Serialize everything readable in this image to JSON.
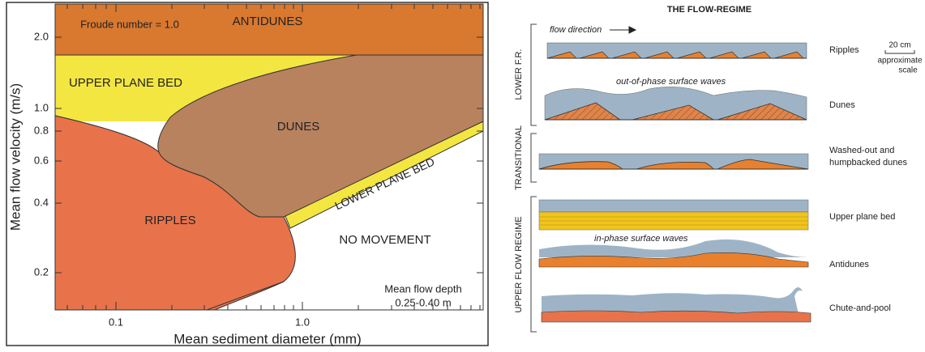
{
  "left_panel": {
    "y_axis_title": "Mean flow velocity (m/s)",
    "x_axis_title": "Mean sediment diameter (mm)",
    "y_tick_labels": [
      "2.0",
      "1.0",
      "0.8",
      "0.6",
      "0.4",
      "0.2"
    ],
    "x_tick_labels": [
      "0.1",
      "1.0"
    ],
    "froude_line": "Froude number = 1.0",
    "regions": [
      "ANTIDUNES",
      "UPPER PLANE BED",
      "DUNES",
      "RIPPLES",
      "LOWER PLANE BED",
      "NO MOVEMENT"
    ],
    "depth_note": [
      "Mean flow depth",
      "0.25-0.40 m"
    ]
  },
  "right_panel": {
    "title": "THE FLOW-REGIME",
    "flow_direction": "flow direction",
    "regimes": [
      "LOWER F.R.",
      "TRANSITIONAL",
      "UPPER FLOW REGIME"
    ],
    "bedforms": [
      "Ripples",
      "Dunes",
      "Washed-out and",
      "humpbacked dunes",
      "Upper plane bed",
      "Antidunes",
      "Chute-and-pool"
    ],
    "scale": [
      "20 cm",
      "approximate",
      "scale"
    ],
    "annotations": [
      "out-of-phase surface waves",
      "in-phase surface waves"
    ]
  }
}
